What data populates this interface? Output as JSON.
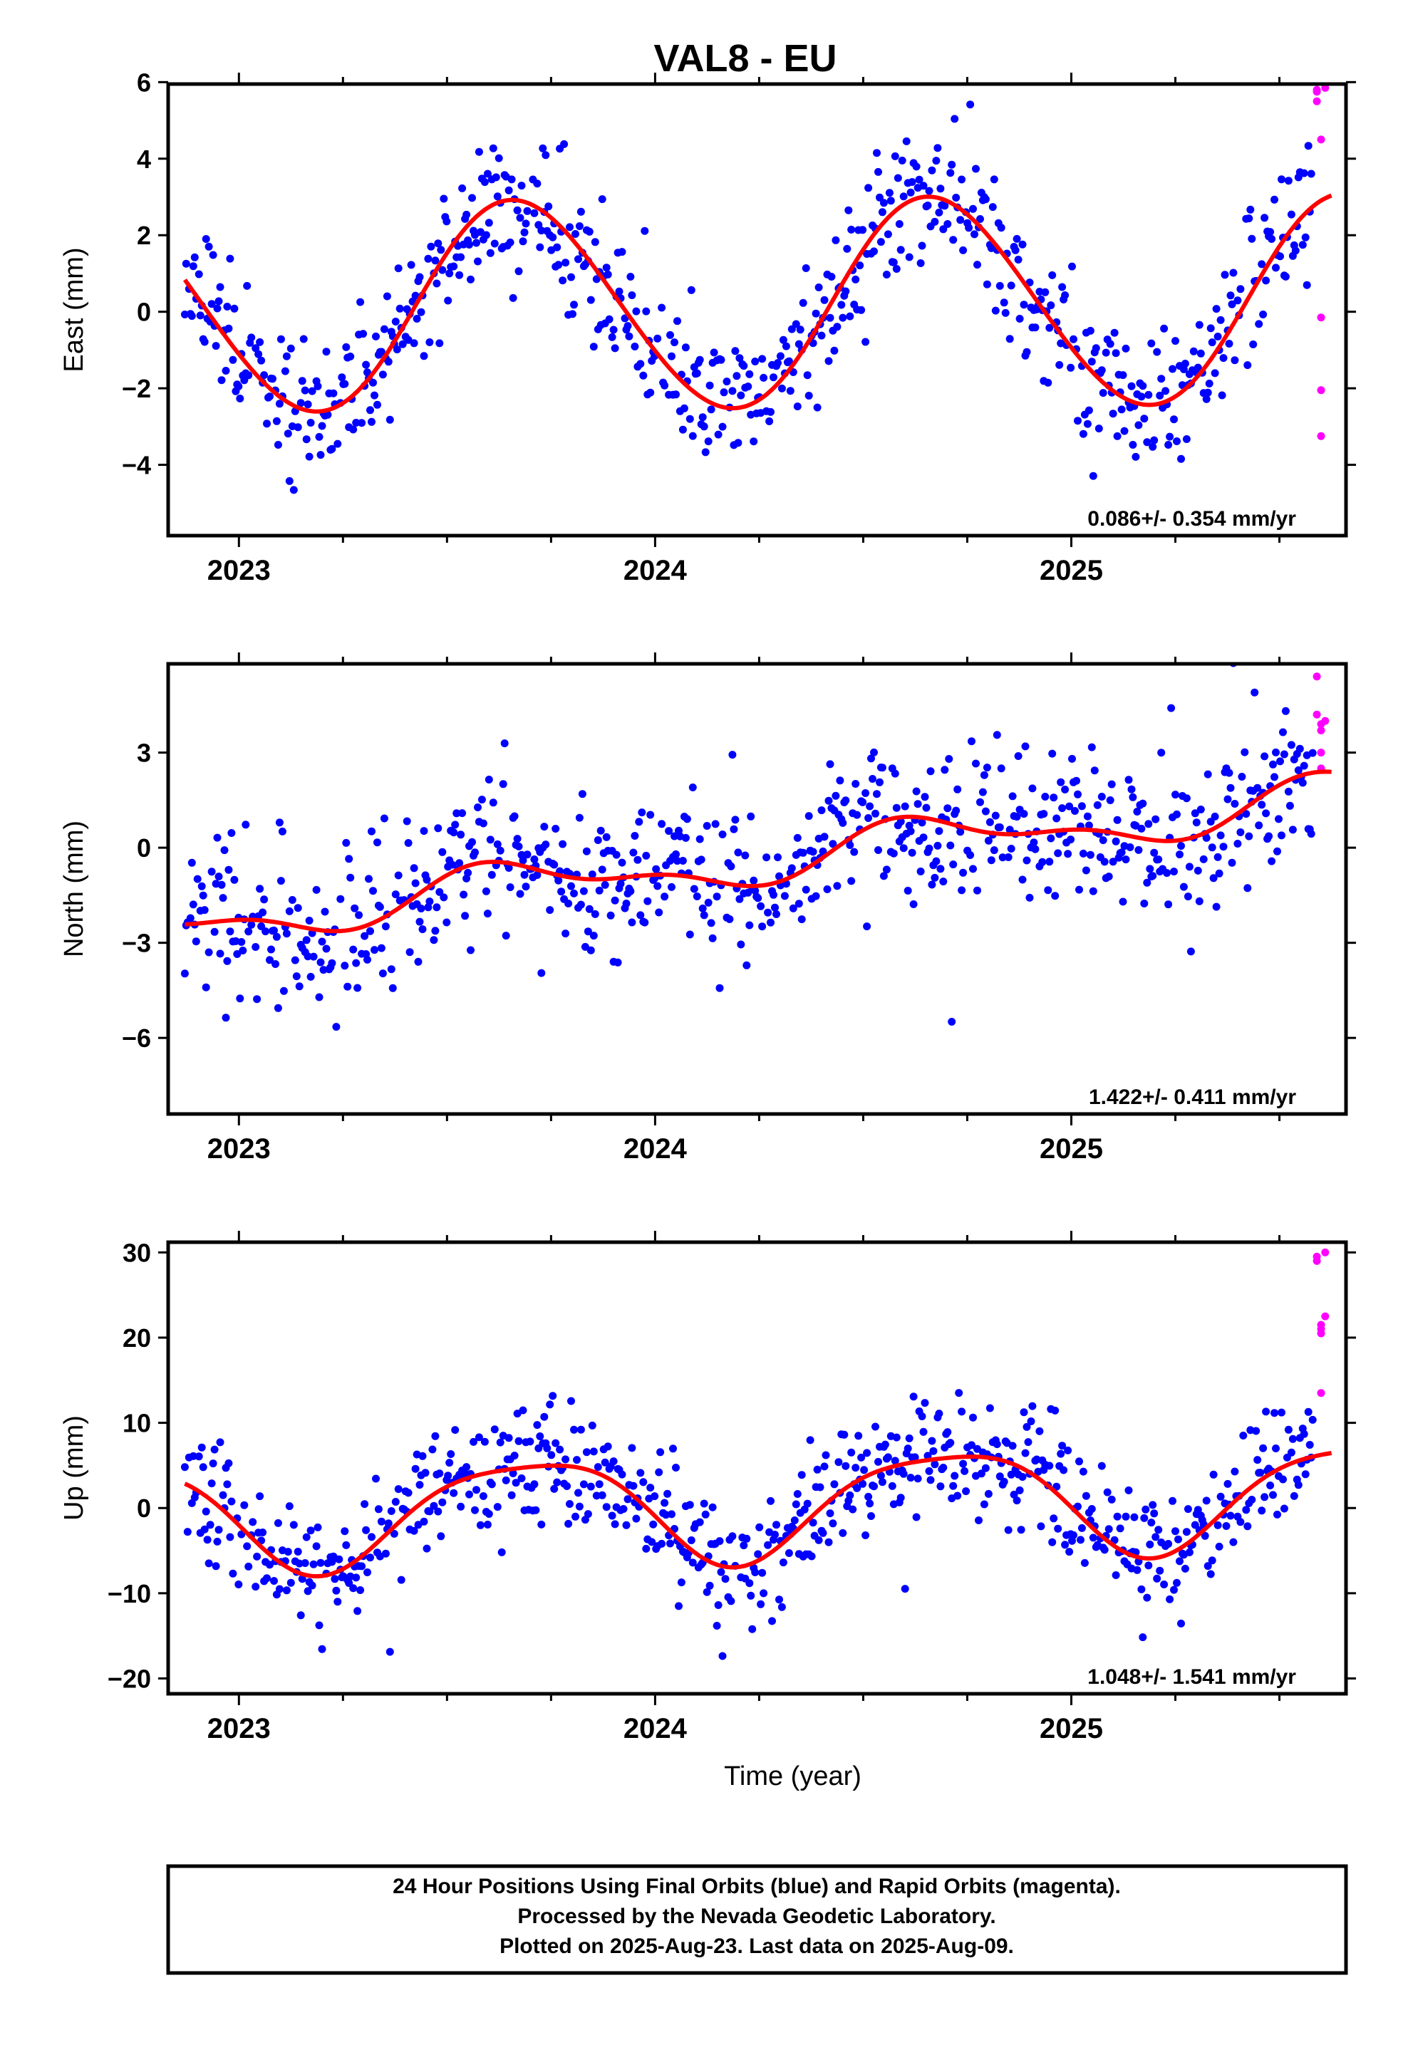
{
  "chart_data": [
    {
      "type": "scatter",
      "title": "VAL8 - EU",
      "ylabel": "East (mm)",
      "xlabel": "",
      "xlim": [
        2022.83,
        2025.66
      ],
      "ylim": [
        -5.85,
        5.95
      ],
      "yticks": [
        -4,
        -2,
        0,
        2,
        4,
        6
      ],
      "ytick_labels": [
        "−4",
        "−2",
        "0",
        "2",
        "4",
        "6"
      ],
      "xticks": [
        2023,
        2024,
        2025
      ],
      "xtick_labels": [
        "2023",
        "2024",
        "2025"
      ],
      "rate_label": "0.086+/- 0.354 mm/yr",
      "grid": false,
      "fit": {
        "rate": 0.086,
        "offset": 0.2,
        "center": 2024.25,
        "annual": [
          -2.4,
          -1.3
        ],
        "semiannual": [
          0.1,
          0.1
        ]
      },
      "series": [
        {
          "color": "#0000ff",
          "final_seed": 11,
          "start": 2022.87,
          "end": 2025.58,
          "step": 0.0034,
          "noise": 0.95
        },
        {
          "color": "#ff00ff",
          "x": [
            2025.59,
            2025.59,
            2025.59,
            2025.6,
            2025.6,
            2025.6,
            2025.6,
            2025.61
          ],
          "y": [
            5.8,
            5.5,
            5.75,
            -0.15,
            -2.05,
            -3.25,
            4.5,
            5.85
          ]
        }
      ]
    },
    {
      "type": "scatter",
      "title": "",
      "ylabel": "North (mm)",
      "xlabel": "",
      "xlim": [
        2022.83,
        2025.66
      ],
      "ylim": [
        -8.4,
        5.8
      ],
      "yticks": [
        -6,
        -3,
        0,
        3
      ],
      "ytick_labels": [
        "−6",
        "−3",
        "0",
        "3"
      ],
      "xticks": [
        2023,
        2024,
        2025
      ],
      "xtick_labels": [
        "2023",
        "2024",
        "2025"
      ],
      "rate_label": "1.422+/- 0.411 mm/yr",
      "grid": false,
      "fit": {
        "rate": 1.422,
        "offset": -0.4,
        "center": 2024.25,
        "annual": [
          -0.55,
          -0.35
        ],
        "semiannual": [
          0.2,
          0.25
        ]
      },
      "series": [
        {
          "color": "#0000ff",
          "final_seed": 23,
          "start": 2022.87,
          "end": 2025.58,
          "step": 0.0034,
          "noise": 1.2
        },
        {
          "color": "#ff00ff",
          "x": [
            2025.59,
            2025.59,
            2025.6,
            2025.6,
            2025.6,
            2025.6,
            2025.61
          ],
          "y": [
            5.4,
            4.2,
            3.9,
            3.7,
            3.0,
            2.5,
            4.0
          ]
        }
      ]
    },
    {
      "type": "scatter",
      "title": "",
      "ylabel": "Up (mm)",
      "xlabel": "Time (year)",
      "xlim": [
        2022.83,
        2025.66
      ],
      "ylim": [
        -21.8,
        31.2
      ],
      "yticks": [
        -20,
        -10,
        0,
        10,
        20,
        30
      ],
      "ytick_labels": [
        "−20",
        "−10",
        "0",
        "10",
        "20",
        "30"
      ],
      "xticks": [
        2023,
        2024,
        2025
      ],
      "xtick_labels": [
        "2023",
        "2024",
        "2025"
      ],
      "rate_label": "1.048+/- 1.541 mm/yr",
      "grid": false,
      "fit": {
        "rate": 1.048,
        "offset": 0.5,
        "center": 2024.25,
        "annual": [
          -5.8,
          -2.0
        ],
        "semiannual": [
          -1.0,
          0.8
        ]
      },
      "series": [
        {
          "color": "#0000ff",
          "final_seed": 37,
          "start": 2022.87,
          "end": 2025.58,
          "step": 0.0034,
          "noise": 3.6
        },
        {
          "color": "#ff00ff",
          "x": [
            2025.59,
            2025.59,
            2025.6,
            2025.6,
            2025.6,
            2025.6,
            2025.61,
            2025.61
          ],
          "y": [
            29.5,
            29.0,
            21.5,
            21.0,
            20.5,
            13.5,
            22.5,
            30.0
          ]
        }
      ]
    }
  ],
  "caption": {
    "line1": "24 Hour Positions Using Final Orbits (blue) and Rapid Orbits (magenta).",
    "line2": "Processed by the Nevada Geodetic Laboratory.",
    "line3": "Plotted on 2025-Aug-23. Last data on 2025-Aug-09."
  },
  "colors": {
    "final": "#0000ff",
    "rapid": "#ff00ff",
    "fit": "#ff0000"
  }
}
